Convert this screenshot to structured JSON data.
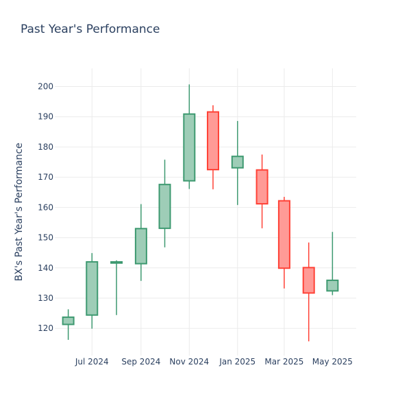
{
  "chart_data": {
    "type": "candlestick",
    "title": "Past Year's Performance",
    "xlabel": "",
    "ylabel": "BX's Past Year's Performance",
    "ylim": [
      111,
      206
    ],
    "xlim": [
      "2024-05-15",
      "2025-05-31"
    ],
    "grid": true,
    "legend": "none",
    "colors": {
      "increasing_line": "#3d9970",
      "increasing_fill": "#9ecdb7",
      "decreasing_line": "#ff4136",
      "decreasing_fill": "#ff9a96",
      "grid": "#ebebeb",
      "text": "#2a3f5f"
    },
    "y_ticks": [
      120,
      130,
      140,
      150,
      160,
      170,
      180,
      190,
      200
    ],
    "x_ticks": [
      {
        "date": "2024-07-01",
        "label": "Jul 2024"
      },
      {
        "date": "2024-09-01",
        "label": "Sep 2024"
      },
      {
        "date": "2024-11-01",
        "label": "Nov 2024"
      },
      {
        "date": "2025-01-01",
        "label": "Jan 2025"
      },
      {
        "date": "2025-03-01",
        "label": "Mar 2025"
      },
      {
        "date": "2025-05-01",
        "label": "May 2025"
      }
    ],
    "candles": [
      {
        "date": "2024-06-01",
        "open": 121.3,
        "high": 126.3,
        "low": 116.2,
        "close": 123.7
      },
      {
        "date": "2024-07-01",
        "open": 124.4,
        "high": 144.9,
        "low": 119.9,
        "close": 142.0
      },
      {
        "date": "2024-08-01",
        "open": 141.6,
        "high": 142.5,
        "low": 124.4,
        "close": 142.0
      },
      {
        "date": "2024-09-01",
        "open": 141.4,
        "high": 161.1,
        "low": 135.7,
        "close": 153.0
      },
      {
        "date": "2024-10-01",
        "open": 153.1,
        "high": 175.8,
        "low": 146.8,
        "close": 167.6
      },
      {
        "date": "2024-11-01",
        "open": 168.8,
        "high": 200.7,
        "low": 166.1,
        "close": 190.9
      },
      {
        "date": "2024-12-01",
        "open": 191.6,
        "high": 193.8,
        "low": 166.0,
        "close": 172.5
      },
      {
        "date": "2025-01-01",
        "open": 173.1,
        "high": 188.6,
        "low": 160.8,
        "close": 176.9
      },
      {
        "date": "2025-02-01",
        "open": 172.4,
        "high": 177.5,
        "low": 153.1,
        "close": 161.2
      },
      {
        "date": "2025-03-01",
        "open": 162.2,
        "high": 163.5,
        "low": 133.2,
        "close": 139.9
      },
      {
        "date": "2025-04-01",
        "open": 140.1,
        "high": 148.4,
        "low": 115.7,
        "close": 131.7
      },
      {
        "date": "2025-05-01",
        "open": 132.4,
        "high": 151.9,
        "low": 131.0,
        "close": 135.9
      }
    ]
  }
}
